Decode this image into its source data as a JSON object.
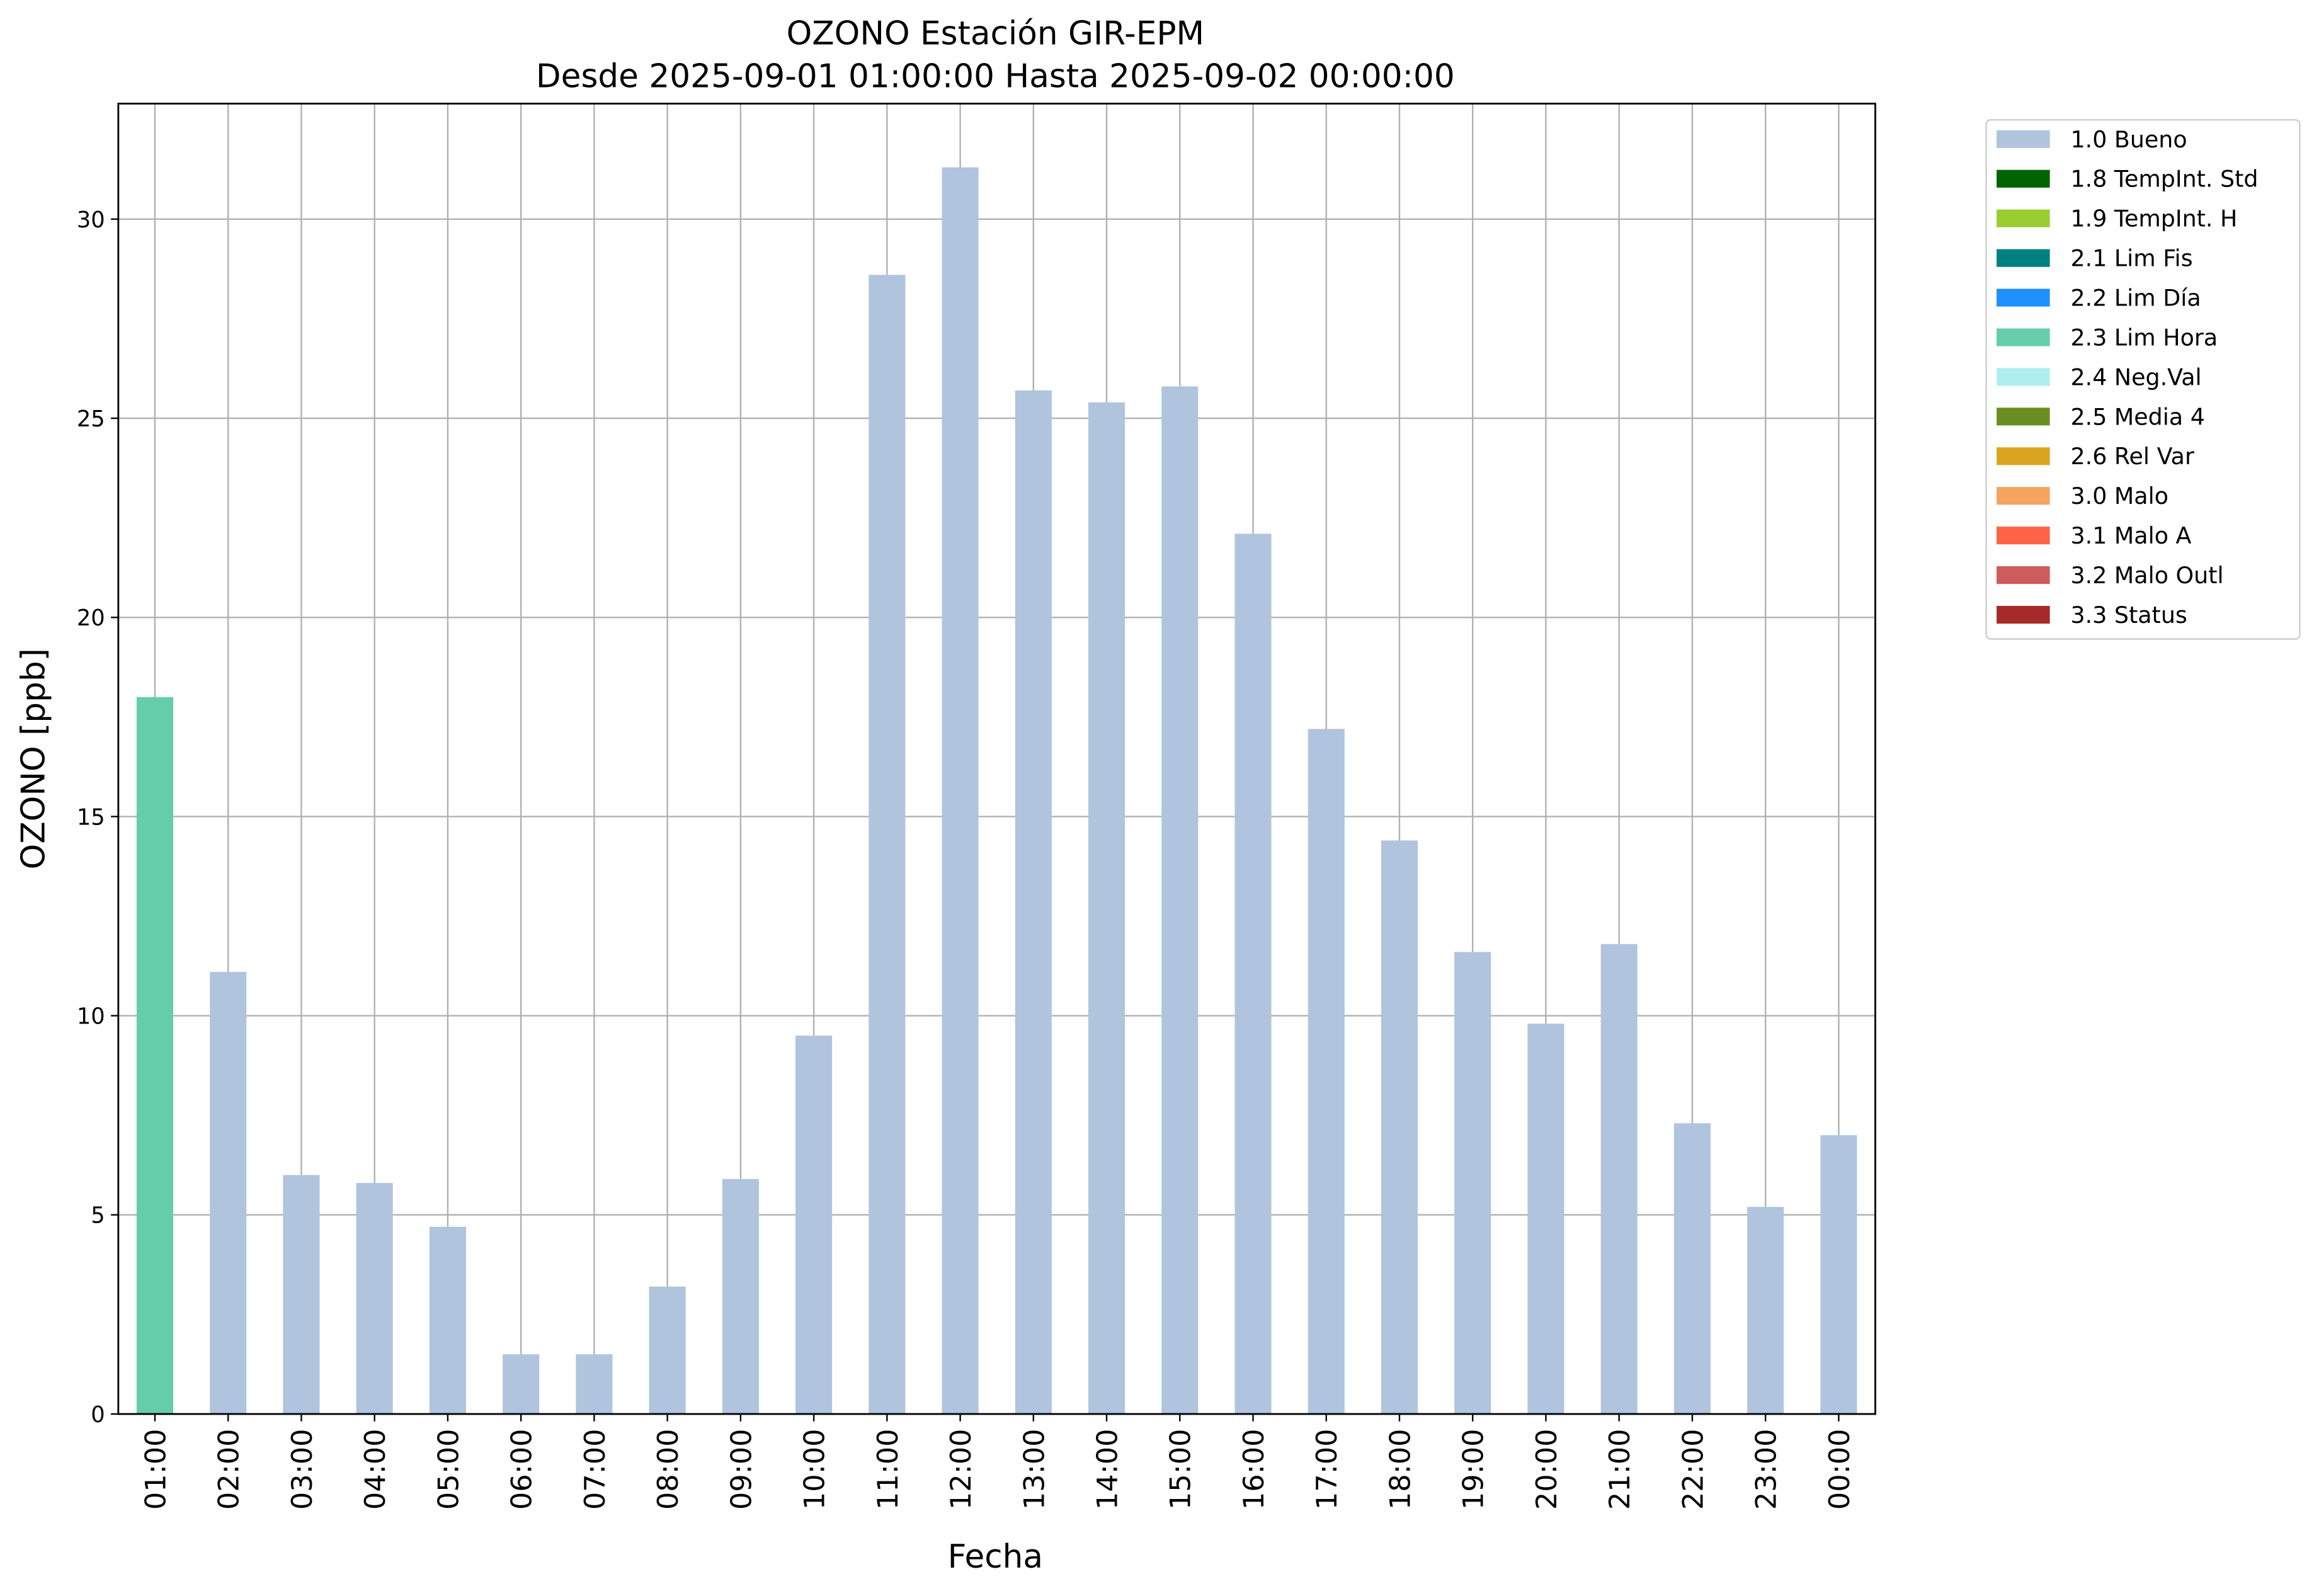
{
  "chart_data": {
    "type": "stacked-bar",
    "title": "OZONO Estación GIR-EPM",
    "subtitle": "Desde 2025-09-01 01:00:00 Hasta 2025-09-02 00:00:00",
    "x_label": "Fecha",
    "y_label": "OZONO [ppb]",
    "categories": [
      "01:00",
      "02:00",
      "03:00",
      "04:00",
      "05:00",
      "06:00",
      "07:00",
      "08:00",
      "09:00",
      "10:00",
      "11:00",
      "12:00",
      "13:00",
      "14:00",
      "15:00",
      "16:00",
      "17:00",
      "18:00",
      "19:00",
      "20:00",
      "21:00",
      "22:00",
      "23:00",
      "00:00"
    ],
    "series": [
      {
        "name": "1.0 Bueno",
        "color": "#b0c4de",
        "values": [
          null,
          11.1,
          6.0,
          5.8,
          4.7,
          1.5,
          1.5,
          3.2,
          5.9,
          9.5,
          28.6,
          31.3,
          25.7,
          25.4,
          25.8,
          22.1,
          17.2,
          14.4,
          11.6,
          9.8,
          11.8,
          7.3,
          5.2,
          7.0
        ]
      },
      {
        "name": "1.8 TempInt. Std",
        "color": "#006400",
        "values": [
          null,
          null,
          null,
          null,
          null,
          null,
          null,
          null,
          null,
          null,
          null,
          null,
          null,
          null,
          null,
          null,
          null,
          null,
          null,
          null,
          null,
          null,
          null,
          null
        ]
      },
      {
        "name": "1.9 TempInt. H",
        "color": "#9acd32",
        "values": [
          null,
          null,
          null,
          null,
          null,
          null,
          null,
          null,
          null,
          null,
          null,
          null,
          null,
          null,
          null,
          null,
          null,
          null,
          null,
          null,
          null,
          null,
          null,
          null
        ]
      },
      {
        "name": "2.1 Lim Fis",
        "color": "#008080",
        "values": [
          null,
          null,
          null,
          null,
          null,
          null,
          null,
          null,
          null,
          null,
          null,
          null,
          null,
          null,
          null,
          null,
          null,
          null,
          null,
          null,
          null,
          null,
          null,
          null
        ]
      },
      {
        "name": "2.2 Lim Día",
        "color": "#1e90ff",
        "values": [
          null,
          null,
          null,
          null,
          null,
          null,
          null,
          null,
          null,
          null,
          null,
          null,
          null,
          null,
          null,
          null,
          null,
          null,
          null,
          null,
          null,
          null,
          null,
          null
        ]
      },
      {
        "name": "2.3 Lim Hora",
        "color": "#66cdaa",
        "values": [
          18.0,
          null,
          null,
          null,
          null,
          null,
          null,
          null,
          null,
          null,
          null,
          null,
          null,
          null,
          null,
          null,
          null,
          null,
          null,
          null,
          null,
          null,
          null,
          null
        ]
      },
      {
        "name": "2.4 Neg.Val",
        "color": "#afeeee",
        "values": [
          null,
          null,
          null,
          null,
          null,
          null,
          null,
          null,
          null,
          null,
          null,
          null,
          null,
          null,
          null,
          null,
          null,
          null,
          null,
          null,
          null,
          null,
          null,
          null
        ]
      },
      {
        "name": "2.5 Media 4",
        "color": "#6b8e23",
        "values": [
          null,
          null,
          null,
          null,
          null,
          null,
          null,
          null,
          null,
          null,
          null,
          null,
          null,
          null,
          null,
          null,
          null,
          null,
          null,
          null,
          null,
          null,
          null,
          null
        ]
      },
      {
        "name": "2.6 Rel Var",
        "color": "#daa520",
        "values": [
          null,
          null,
          null,
          null,
          null,
          null,
          null,
          null,
          null,
          null,
          null,
          null,
          null,
          null,
          null,
          null,
          null,
          null,
          null,
          null,
          null,
          null,
          null,
          null
        ]
      },
      {
        "name": "3.0 Malo",
        "color": "#f4a460",
        "values": [
          null,
          null,
          null,
          null,
          null,
          null,
          null,
          null,
          null,
          null,
          null,
          null,
          null,
          null,
          null,
          null,
          null,
          null,
          null,
          null,
          null,
          null,
          null,
          null
        ]
      },
      {
        "name": "3.1 Malo A",
        "color": "#ff6347",
        "values": [
          null,
          null,
          null,
          null,
          null,
          null,
          null,
          null,
          null,
          null,
          null,
          null,
          null,
          null,
          null,
          null,
          null,
          null,
          null,
          null,
          null,
          null,
          null,
          null
        ]
      },
      {
        "name": "3.2 Malo Outl",
        "color": "#cd5c5c",
        "values": [
          null,
          null,
          null,
          null,
          null,
          null,
          null,
          null,
          null,
          null,
          null,
          null,
          null,
          null,
          null,
          null,
          null,
          null,
          null,
          null,
          null,
          null,
          null,
          null
        ]
      },
      {
        "name": "3.3 Status",
        "color": "#a52a2a",
        "values": [
          null,
          null,
          null,
          null,
          null,
          null,
          null,
          null,
          null,
          null,
          null,
          null,
          null,
          null,
          null,
          null,
          null,
          null,
          null,
          null,
          null,
          null,
          null,
          null
        ]
      }
    ],
    "ylim": [
      0,
      32.9
    ],
    "yticks": [
      0,
      5,
      10,
      15,
      20,
      25,
      30
    ],
    "grid": true,
    "legend": "outside-upper-right"
  }
}
